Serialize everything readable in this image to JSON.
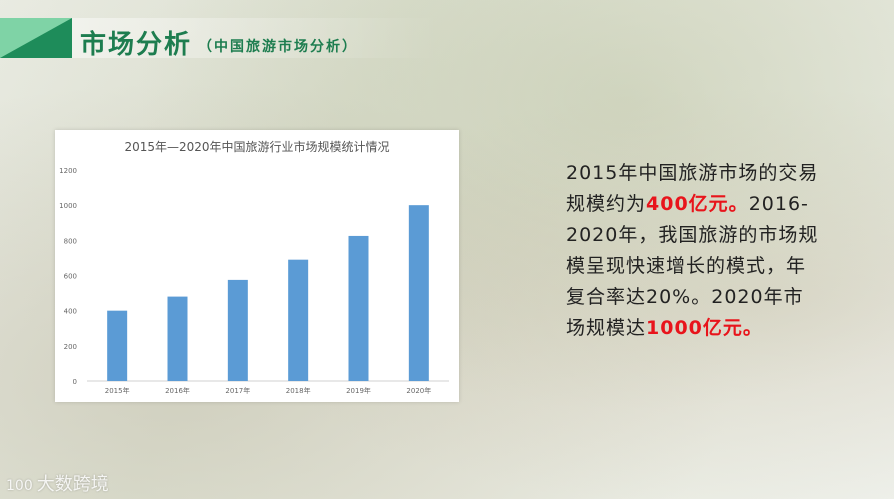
{
  "header": {
    "title": "市场分析",
    "subtitle": "（中国旅游市场分析）"
  },
  "chart_data": {
    "type": "bar",
    "title": "2015年—2020年中国旅游行业市场规模统计情况",
    "categories": [
      "2015年",
      "2016年",
      "2017年",
      "2018年",
      "2019年",
      "2020年"
    ],
    "values": [
      400,
      480,
      575,
      690,
      825,
      1000
    ],
    "ylim": [
      0,
      1200
    ],
    "yticks": [
      "0",
      "200",
      "400",
      "600",
      "800",
      "1000",
      "1200"
    ],
    "bar_color": "#5b9bd5",
    "grid": false
  },
  "description": {
    "part1": "2015年中国旅游市场的交易规模约为",
    "highlight1": "400亿元。",
    "part2": "2016-2020年，我国旅游的市场规模呈现快速增长的模式，年复合率达20%。2020年市场规模达",
    "highlight2": "1000亿元。"
  },
  "watermark": {
    "logo": "100",
    "text": "大数跨境"
  }
}
